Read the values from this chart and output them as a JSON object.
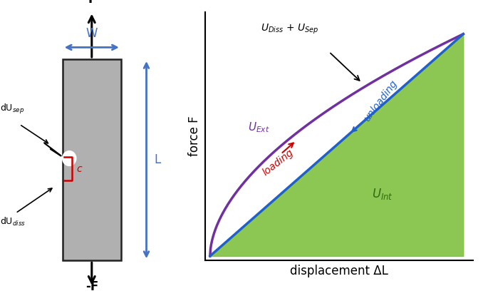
{
  "fig_width": 6.85,
  "fig_height": 4.15,
  "dpi": 100,
  "background_color": "#ffffff",
  "left_panel": {
    "rect_color": "#b0b0b0",
    "rect_edge": "#222222",
    "W_color": "#4472c4",
    "L_color": "#4472c4",
    "c_color": "#cc0000"
  },
  "right_panel": {
    "xlabel": "displacement ΔL",
    "ylabel": "force F",
    "curve_color": "#7030a0",
    "line_color": "#2060cc",
    "fill_color": "#80c040",
    "fill_alpha": 0.9,
    "label_UExt": "$U_{Ext}$",
    "label_UInt": "$U_{Int}$",
    "label_UDiss_USep": "$U_{Diss}$ + $U_{Sep}$",
    "label_loading": "loading",
    "label_unloading": "unloading",
    "loading_color": "#cc0000",
    "unloading_color": "#2060cc"
  }
}
